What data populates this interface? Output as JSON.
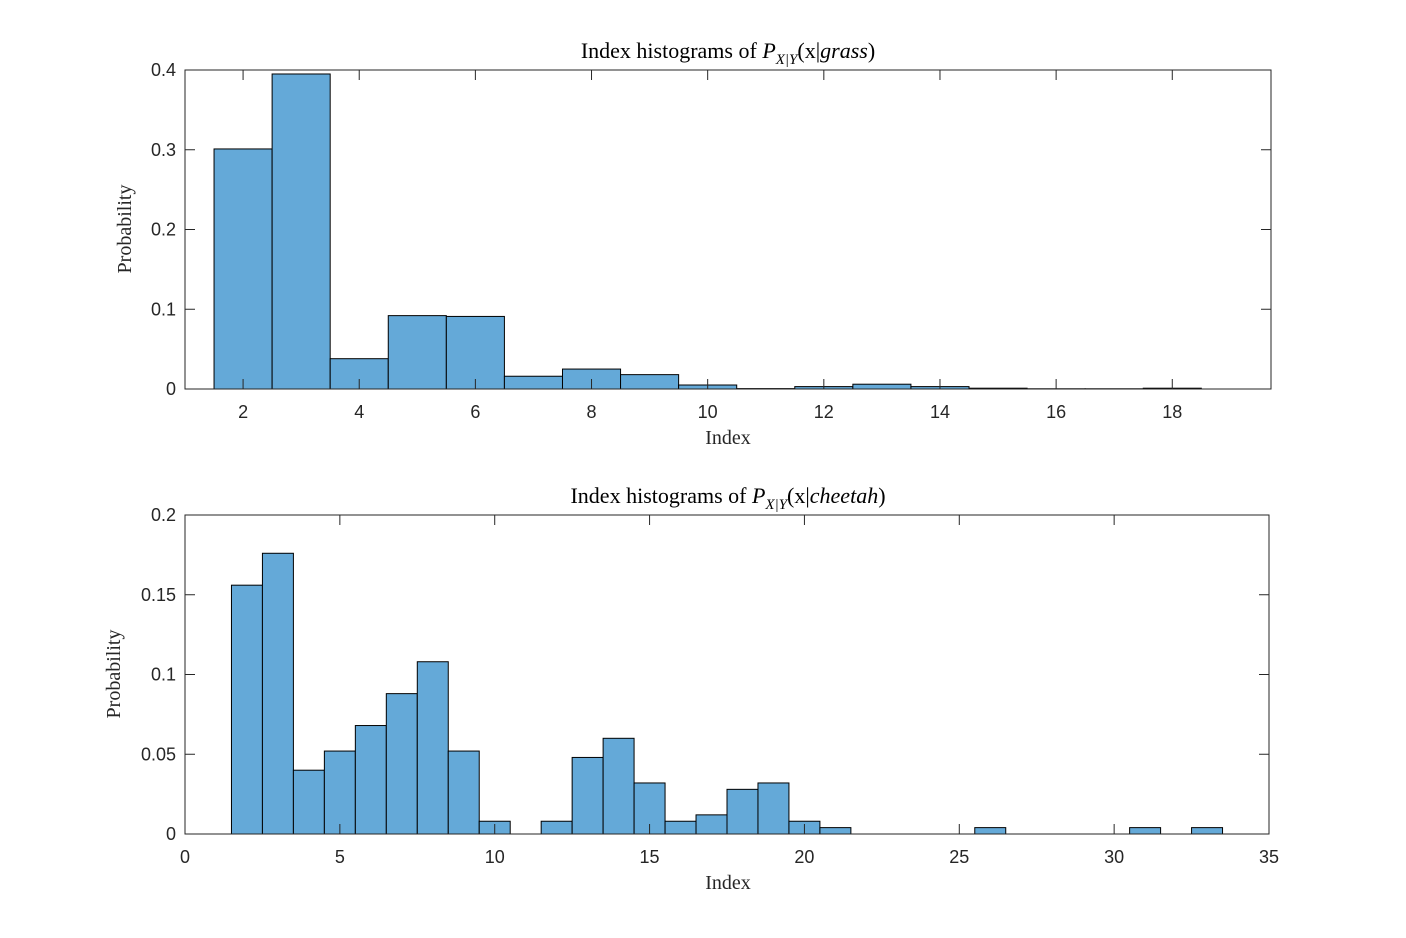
{
  "chart_data": [
    {
      "type": "bar",
      "title": {
        "prefix": "Index histograms of ",
        "P": "P",
        "subscript": "X|Y",
        "open": "(x|",
        "class_name": "grass",
        "close": ")"
      },
      "xlabel": "Index",
      "ylabel": "Probability",
      "xlim": [
        1,
        19.7
      ],
      "ylim": [
        0,
        0.4
      ],
      "xticks": [
        2,
        4,
        6,
        8,
        10,
        12,
        14,
        16,
        18
      ],
      "yticks": [
        0,
        0.1,
        0.2,
        0.3,
        0.4
      ],
      "bar_color": "#64a9d8",
      "bin_width": 1,
      "x": [
        2,
        3,
        4,
        5,
        6,
        7,
        8,
        9,
        10,
        11,
        12,
        13,
        14,
        15,
        16,
        17,
        18
      ],
      "values": [
        0.301,
        0.395,
        0.038,
        0.092,
        0.091,
        0.016,
        0.025,
        0.018,
        0.005,
        0.0005,
        0.003,
        0.006,
        0.003,
        0.001,
        0.0003,
        0.0003,
        0.001
      ]
    },
    {
      "type": "bar",
      "title": {
        "prefix": "Index histograms of ",
        "P": "P",
        "subscript": "X|Y",
        "open": "(x|",
        "class_name": "cheetah",
        "close": ")"
      },
      "xlabel": "Index",
      "ylabel": "Probability",
      "xlim": [
        0,
        35
      ],
      "ylim": [
        0,
        0.2
      ],
      "xticks": [
        0,
        5,
        10,
        15,
        20,
        25,
        30,
        35
      ],
      "yticks": [
        0,
        0.05,
        0.1,
        0.15,
        0.2
      ],
      "bar_color": "#64a9d8",
      "bin_width": 1,
      "x": [
        2,
        3,
        4,
        5,
        6,
        7,
        8,
        9,
        10,
        11,
        12,
        13,
        14,
        15,
        16,
        17,
        18,
        19,
        20,
        21,
        22,
        23,
        24,
        25,
        26,
        27,
        28,
        29,
        30,
        31,
        32,
        33
      ],
      "values": [
        0.156,
        0.176,
        0.04,
        0.052,
        0.068,
        0.088,
        0.108,
        0.052,
        0.008,
        0,
        0.008,
        0.048,
        0.06,
        0.032,
        0.008,
        0.012,
        0.028,
        0.032,
        0.008,
        0.004,
        0,
        0,
        0,
        0,
        0.004,
        0,
        0,
        0,
        0,
        0.004,
        0,
        0.004
      ]
    }
  ]
}
